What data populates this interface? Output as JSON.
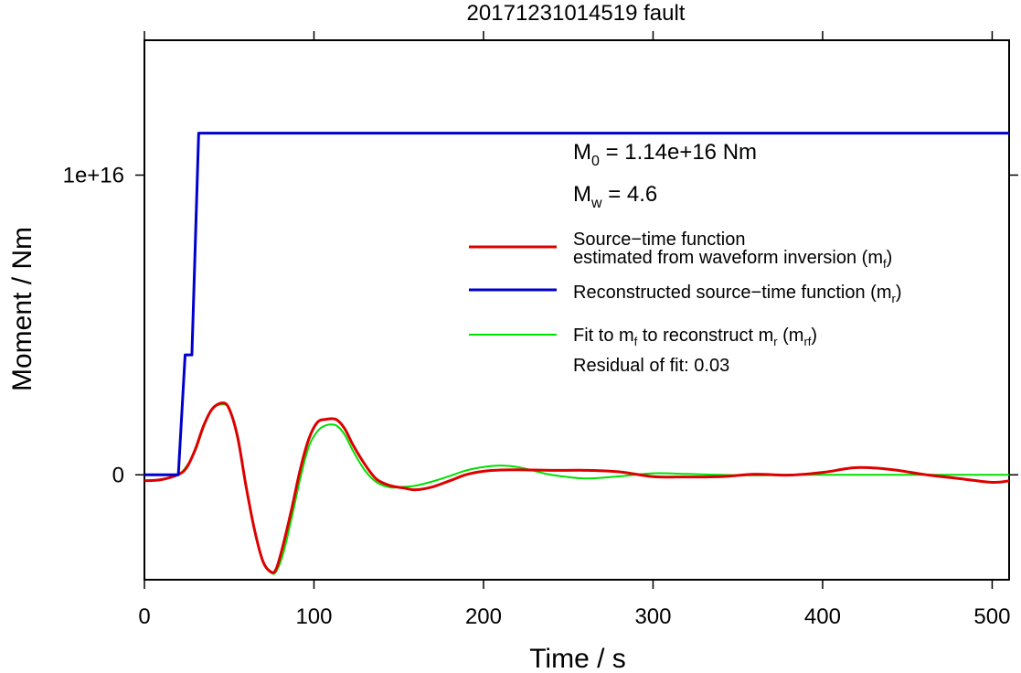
{
  "chart_data": {
    "type": "line",
    "title": "20171231014519 fault",
    "xlabel": "Time / s",
    "ylabel": "Moment / Nm",
    "xlim": [
      0,
      510
    ],
    "ylim": [
      -3500000000000000.0,
      1.45e+16
    ],
    "xticks": [
      0,
      100,
      200,
      300,
      400,
      500
    ],
    "xtick_labels": [
      "0",
      "100",
      "200",
      "300",
      "400",
      "500"
    ],
    "yticks": [
      0,
      1e+16
    ],
    "ytick_labels": [
      "0",
      "1e+16"
    ],
    "grid": false,
    "legend_position": "right",
    "annotations": {
      "m0": {
        "main": "M",
        "sub": "0",
        "rest": " = 1.14e+16 Nm"
      },
      "mw": {
        "main": "M",
        "sub": "w",
        "rest": " = 4.6"
      },
      "residual": "Residual of fit: 0.03"
    },
    "legend": [
      {
        "color": "#dd0000",
        "line1": "Source−time function",
        "line2": "estimated from waveform inversion (m",
        "sub": "f",
        "tail": ")"
      },
      {
        "color": "#0000cc",
        "line1": "Reconstructed source−time function (m",
        "sub": "r",
        "tail": ")"
      },
      {
        "color": "#00e000",
        "line1a": "Fit to m",
        "sub1": "f",
        "line1b": " to reconstruct m",
        "sub2": "r",
        "line1c": " (m",
        "sub3": "rf",
        "tail": ")"
      }
    ],
    "series": [
      {
        "color": "#0000cc",
        "x": [
          0,
          20,
          24,
          27,
          28,
          30,
          32,
          510
        ],
        "y": [
          0,
          0,
          4000000000000000.0,
          4000000000000000.0,
          4000000000000000.0,
          1.14e+16,
          1.14e+16,
          1.14e+16
        ],
        "step_points": [
          [
            0,
            0
          ],
          [
            20,
            0
          ],
          [
            24,
            4000000000000000.0
          ],
          [
            28,
            4000000000000000.0
          ],
          [
            32,
            1.14e+16
          ],
          [
            510,
            1.14e+16
          ]
        ]
      },
      {
        "color": "#dd0000",
        "x": [
          0,
          10,
          20,
          25,
          30,
          35,
          40,
          46,
          50,
          55,
          60,
          65,
          70,
          75,
          78,
          82,
          87,
          92,
          97,
          102,
          107,
          113,
          118,
          123,
          130,
          137,
          145,
          153,
          160,
          170,
          180,
          190,
          200,
          210,
          220,
          240,
          260,
          280,
          300,
          320,
          340,
          360,
          380,
          400,
          420,
          440,
          460,
          480,
          500,
          510
        ],
        "y": [
          -200000000000000.0,
          -160000000000000.0,
          10000000000000.0,
          250000000000000.0,
          850000000000000.0,
          1650000000000000.0,
          2200000000000000.0,
          2400000000000000.0,
          2200000000000000.0,
          1250000000000000.0,
          -400000000000000.0,
          -1850000000000000.0,
          -2900000000000000.0,
          -3250000000000000.0,
          -3100000000000000.0,
          -2300000000000000.0,
          -1100000000000000.0,
          200000000000000.0,
          1200000000000000.0,
          1750000000000000.0,
          1850000000000000.0,
          1850000000000000.0,
          1550000000000000.0,
          1000000000000000.0,
          350000000000000.0,
          -150000000000000.0,
          -360000000000000.0,
          -440000000000000.0,
          -500000000000000.0,
          -400000000000000.0,
          -200000000000000.0,
          10000000000000.0,
          120000000000000.0,
          160000000000000.0,
          170000000000000.0,
          150000000000000.0,
          150000000000000.0,
          100000000000000.0,
          -60000000000000.0,
          -70000000000000.0,
          -60000000000000.0,
          20000000000000.0,
          -10000000000000.0,
          80000000000000.0,
          240000000000000.0,
          180000000000000.0,
          10000000000000.0,
          -120000000000000.0,
          -250000000000000.0,
          -200000000000000.0
        ]
      },
      {
        "color": "#00e000",
        "x": [
          0,
          10,
          20,
          25,
          30,
          35,
          40,
          46,
          50,
          55,
          60,
          65,
          70,
          75,
          78,
          82,
          87,
          92,
          97,
          102,
          107,
          113,
          118,
          123,
          130,
          137,
          145,
          153,
          160,
          170,
          180,
          190,
          200,
          210,
          220,
          230,
          240,
          260,
          280,
          300,
          320,
          340,
          360,
          380,
          400,
          420,
          440,
          460,
          480,
          500,
          510
        ],
        "y": [
          0,
          0,
          30000000000000.0,
          300000000000000.0,
          800000000000000.0,
          1600000000000000.0,
          2200000000000000.0,
          2350000000000000.0,
          2200000000000000.0,
          1300000000000000.0,
          -400000000000000.0,
          -1850000000000000.0,
          -2900000000000000.0,
          -3280000000000000.0,
          -3200000000000000.0,
          -2600000000000000.0,
          -1400000000000000.0,
          -100000000000000.0,
          950000000000000.0,
          1450000000000000.0,
          1650000000000000.0,
          1650000000000000.0,
          1350000000000000.0,
          800000000000000.0,
          150000000000000.0,
          -250000000000000.0,
          -420000000000000.0,
          -400000000000000.0,
          -360000000000000.0,
          -220000000000000.0,
          -40000000000000.0,
          150000000000000.0,
          260000000000000.0,
          310000000000000.0,
          260000000000000.0,
          130000000000000.0,
          0,
          -120000000000000.0,
          -50000000000000.0,
          50000000000000.0,
          30000000000000.0,
          0,
          -20000000000000.0,
          0,
          0,
          0,
          0,
          0,
          0,
          0,
          0
        ]
      }
    ]
  }
}
